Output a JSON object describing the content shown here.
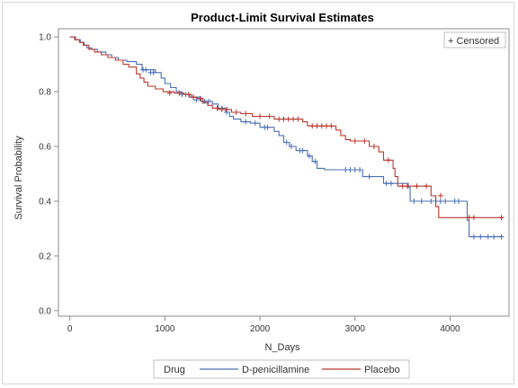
{
  "chart_data": {
    "type": "line",
    "title": "Product-Limit Survival Estimates",
    "xlabel": "N_Days",
    "ylabel": "Survival Probability",
    "xlim": [
      -120,
      4620
    ],
    "ylim": [
      -0.02,
      1.03
    ],
    "x_ticks": [
      0,
      1000,
      2000,
      3000,
      4000
    ],
    "y_ticks": [
      0.0,
      0.2,
      0.4,
      0.6,
      0.8,
      1.0
    ],
    "y_tick_labels": [
      "0.0",
      "0.2",
      "0.4",
      "0.6",
      "0.8",
      "1.0"
    ],
    "censored_legend": "+ Censored",
    "legend_title": "Drug",
    "legend_position": "bottom",
    "series": [
      {
        "name": "D-penicillamine",
        "color": "#4a6fb5",
        "steps": [
          [
            0,
            1.0
          ],
          [
            60,
            0.99
          ],
          [
            110,
            0.98
          ],
          [
            150,
            0.97
          ],
          [
            180,
            0.96
          ],
          [
            230,
            0.955
          ],
          [
            290,
            0.945
          ],
          [
            380,
            0.935
          ],
          [
            440,
            0.925
          ],
          [
            510,
            0.915
          ],
          [
            600,
            0.91
          ],
          [
            700,
            0.9
          ],
          [
            760,
            0.88
          ],
          [
            900,
            0.87
          ],
          [
            960,
            0.85
          ],
          [
            1000,
            0.83
          ],
          [
            1060,
            0.815
          ],
          [
            1120,
            0.8
          ],
          [
            1180,
            0.79
          ],
          [
            1260,
            0.78
          ],
          [
            1380,
            0.765
          ],
          [
            1500,
            0.755
          ],
          [
            1560,
            0.74
          ],
          [
            1640,
            0.725
          ],
          [
            1680,
            0.71
          ],
          [
            1720,
            0.7
          ],
          [
            1800,
            0.69
          ],
          [
            1900,
            0.685
          ],
          [
            2000,
            0.67
          ],
          [
            2150,
            0.655
          ],
          [
            2200,
            0.64
          ],
          [
            2250,
            0.615
          ],
          [
            2310,
            0.6
          ],
          [
            2380,
            0.585
          ],
          [
            2500,
            0.565
          ],
          [
            2550,
            0.545
          ],
          [
            2600,
            0.52
          ],
          [
            2680,
            0.515
          ],
          [
            3080,
            0.49
          ],
          [
            3300,
            0.465
          ],
          [
            3560,
            0.45
          ],
          [
            3580,
            0.4
          ],
          [
            4180,
            0.33
          ],
          [
            4200,
            0.27
          ],
          [
            4560,
            0.27
          ]
        ],
        "censored": [
          [
            770,
            0.88
          ],
          [
            800,
            0.88
          ],
          [
            850,
            0.87
          ],
          [
            880,
            0.87
          ],
          [
            1180,
            0.79
          ],
          [
            1220,
            0.79
          ],
          [
            1300,
            0.78
          ],
          [
            1330,
            0.77
          ],
          [
            1400,
            0.765
          ],
          [
            1420,
            0.765
          ],
          [
            1460,
            0.765
          ],
          [
            1600,
            0.74
          ],
          [
            1650,
            0.725
          ],
          [
            1850,
            0.69
          ],
          [
            1950,
            0.685
          ],
          [
            2050,
            0.67
          ],
          [
            2080,
            0.67
          ],
          [
            2280,
            0.615
          ],
          [
            2330,
            0.6
          ],
          [
            2420,
            0.585
          ],
          [
            2450,
            0.585
          ],
          [
            2520,
            0.565
          ],
          [
            2580,
            0.545
          ],
          [
            2900,
            0.515
          ],
          [
            2950,
            0.515
          ],
          [
            3000,
            0.515
          ],
          [
            3050,
            0.515
          ],
          [
            3150,
            0.49
          ],
          [
            3330,
            0.465
          ],
          [
            3380,
            0.465
          ],
          [
            3620,
            0.4
          ],
          [
            3700,
            0.4
          ],
          [
            3800,
            0.4
          ],
          [
            3850,
            0.4
          ],
          [
            3900,
            0.4
          ],
          [
            3950,
            0.4
          ],
          [
            4050,
            0.4
          ],
          [
            4090,
            0.4
          ],
          [
            4250,
            0.27
          ],
          [
            4320,
            0.27
          ],
          [
            4400,
            0.27
          ],
          [
            4460,
            0.27
          ],
          [
            4540,
            0.27
          ]
        ]
      },
      {
        "name": "Placebo",
        "color": "#b8382e",
        "steps": [
          [
            0,
            1.0
          ],
          [
            50,
            0.99
          ],
          [
            100,
            0.98
          ],
          [
            140,
            0.97
          ],
          [
            200,
            0.955
          ],
          [
            260,
            0.945
          ],
          [
            330,
            0.935
          ],
          [
            400,
            0.925
          ],
          [
            480,
            0.915
          ],
          [
            560,
            0.9
          ],
          [
            620,
            0.89
          ],
          [
            700,
            0.865
          ],
          [
            740,
            0.85
          ],
          [
            780,
            0.835
          ],
          [
            820,
            0.82
          ],
          [
            900,
            0.81
          ],
          [
            980,
            0.8
          ],
          [
            1100,
            0.795
          ],
          [
            1200,
            0.79
          ],
          [
            1280,
            0.78
          ],
          [
            1340,
            0.775
          ],
          [
            1400,
            0.76
          ],
          [
            1450,
            0.75
          ],
          [
            1500,
            0.74
          ],
          [
            1560,
            0.735
          ],
          [
            1700,
            0.725
          ],
          [
            1800,
            0.72
          ],
          [
            1920,
            0.71
          ],
          [
            2150,
            0.7
          ],
          [
            2450,
            0.69
          ],
          [
            2500,
            0.675
          ],
          [
            2800,
            0.66
          ],
          [
            2850,
            0.64
          ],
          [
            2900,
            0.625
          ],
          [
            2950,
            0.62
          ],
          [
            3150,
            0.6
          ],
          [
            3250,
            0.58
          ],
          [
            3300,
            0.55
          ],
          [
            3400,
            0.52
          ],
          [
            3420,
            0.49
          ],
          [
            3450,
            0.455
          ],
          [
            3800,
            0.42
          ],
          [
            3850,
            0.38
          ],
          [
            3880,
            0.34
          ],
          [
            4560,
            0.34
          ]
        ],
        "censored": [
          [
            1050,
            0.795
          ],
          [
            1150,
            0.795
          ],
          [
            1250,
            0.79
          ],
          [
            1300,
            0.78
          ],
          [
            1370,
            0.775
          ],
          [
            1550,
            0.74
          ],
          [
            1600,
            0.735
          ],
          [
            1650,
            0.735
          ],
          [
            1750,
            0.725
          ],
          [
            1850,
            0.72
          ],
          [
            2000,
            0.71
          ],
          [
            2100,
            0.71
          ],
          [
            2200,
            0.7
          ],
          [
            2250,
            0.7
          ],
          [
            2300,
            0.7
          ],
          [
            2350,
            0.7
          ],
          [
            2400,
            0.7
          ],
          [
            2550,
            0.675
          ],
          [
            2600,
            0.675
          ],
          [
            2650,
            0.675
          ],
          [
            2700,
            0.675
          ],
          [
            2750,
            0.675
          ],
          [
            3000,
            0.62
          ],
          [
            3100,
            0.62
          ],
          [
            3200,
            0.6
          ],
          [
            3350,
            0.55
          ],
          [
            3500,
            0.455
          ],
          [
            3550,
            0.455
          ],
          [
            3650,
            0.455
          ],
          [
            3750,
            0.455
          ],
          [
            3900,
            0.42
          ],
          [
            4200,
            0.34
          ],
          [
            4250,
            0.34
          ],
          [
            4540,
            0.34
          ]
        ]
      }
    ]
  }
}
